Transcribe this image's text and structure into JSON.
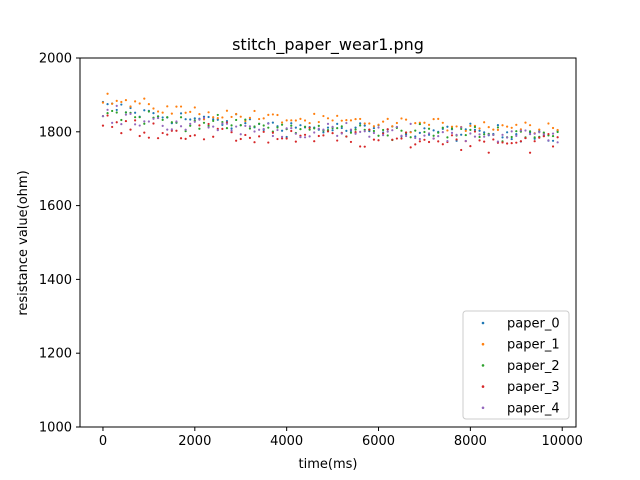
{
  "chart_data": {
    "type": "scatter",
    "title": "stitch_paper_wear1.png",
    "xlabel": "time(ms)",
    "ylabel": "resistance value(ohm)",
    "xlim": [
      -500,
      10300
    ],
    "ylim": [
      1000,
      2000
    ],
    "xticks": [
      0,
      2000,
      4000,
      6000,
      8000,
      10000
    ],
    "yticks": [
      1000,
      1200,
      1400,
      1600,
      1800,
      2000
    ],
    "grid": false,
    "legend_position": "lower right",
    "sample_interval_ms": 100,
    "x_end_ms": 9900,
    "series": [
      {
        "name": "paper_0",
        "color": "#1f77b4",
        "start": 1870,
        "end": 1795,
        "noise": 18
      },
      {
        "name": "paper_1",
        "color": "#ff7f0e",
        "start": 1890,
        "end": 1815,
        "noise": 15
      },
      {
        "name": "paper_2",
        "color": "#2ca02c",
        "start": 1855,
        "end": 1795,
        "noise": 17
      },
      {
        "name": "paper_3",
        "color": "#d62728",
        "start": 1820,
        "end": 1775,
        "noise": 22
      },
      {
        "name": "paper_4",
        "color": "#9467bd",
        "start": 1845,
        "end": 1790,
        "noise": 20
      }
    ]
  }
}
